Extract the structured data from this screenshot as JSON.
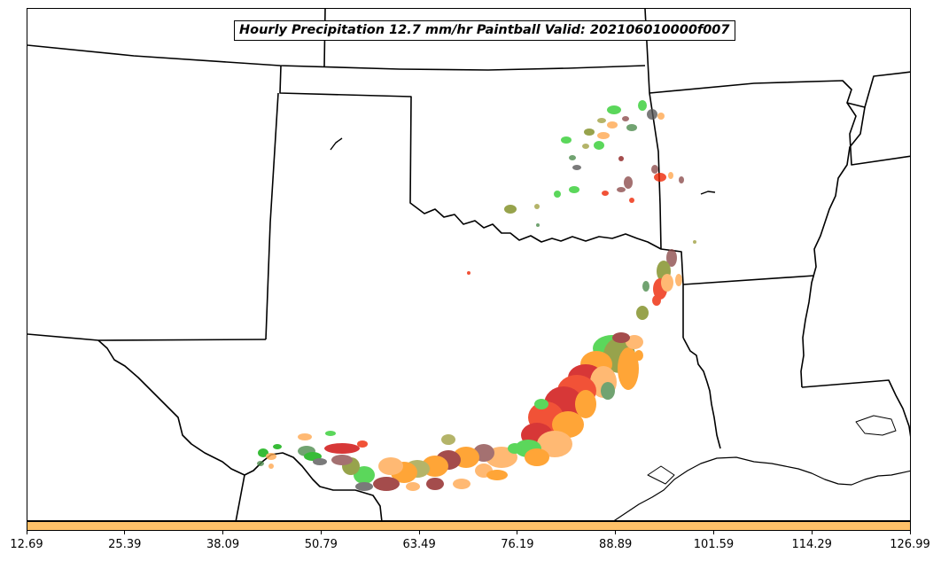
{
  "title": "Hourly Precipitation 12.7 mm/hr Paintball Valid: 202106010000f007",
  "colorbar": {
    "color": "#fdc068",
    "ticks": [
      "12.69",
      "25.39",
      "38.09",
      "50.79",
      "63.49",
      "76.19",
      "88.89",
      "101.59",
      "114.29",
      "126.99"
    ]
  },
  "paintball_colors": [
    "#00aa00",
    "#2ecc2e",
    "#4a8a4a",
    "#7a8a1a",
    "#a0a040",
    "#ff8c00",
    "#ffa64d",
    "#ee2200",
    "#cc0000",
    "#8b1a1a",
    "#8b4a4a",
    "#555555"
  ]
}
